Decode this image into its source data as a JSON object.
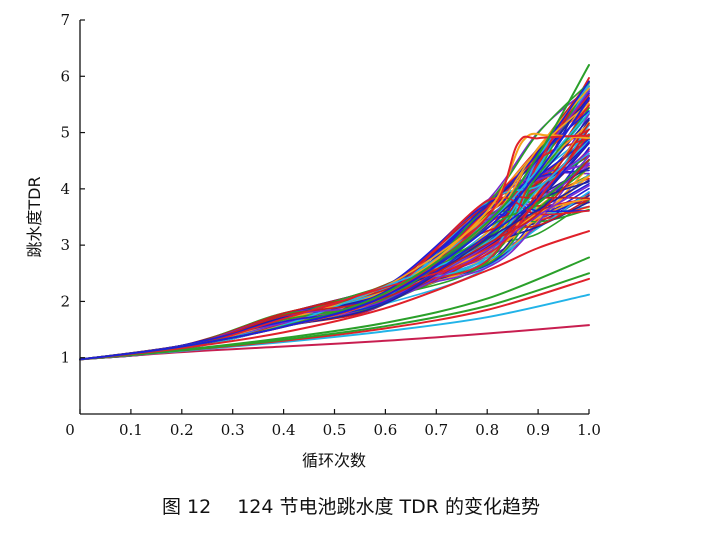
{
  "caption": {
    "figure_label": "图 12",
    "text": "124 节电池跳水度 TDR 的变化趋势"
  },
  "chart_data": {
    "type": "line",
    "title": "",
    "xlabel": "循环次数",
    "ylabel": "跳水度TDR",
    "xlim": [
      0,
      1.0
    ],
    "ylim": [
      0,
      7
    ],
    "xticks": [
      "0",
      "0.1",
      "0.2",
      "0.3",
      "0.4",
      "0.5",
      "0.6",
      "0.7",
      "0.8",
      "0.9",
      "1.0"
    ],
    "yticks": [
      "1",
      "2",
      "3",
      "4",
      "5",
      "6",
      "7"
    ],
    "grid": false,
    "legend": "none",
    "series_count": 124,
    "colors": [
      "#1f1fd6",
      "#e0202a",
      "#f7a21b",
      "#2aa02a",
      "#22b3e8",
      "#7a2ad0",
      "#2020a0",
      "#c81e1e"
    ],
    "series": [
      {
        "name": "",
        "color": "#c81e50",
        "x": [
          0,
          0.2,
          0.4,
          0.6,
          0.8,
          1.0
        ],
        "y": [
          0.97,
          1.1,
          1.2,
          1.3,
          1.43,
          1.58
        ]
      },
      {
        "name": "",
        "color": "#22b3e8",
        "x": [
          0,
          0.2,
          0.4,
          0.6,
          0.8,
          1.0
        ],
        "y": [
          0.97,
          1.12,
          1.28,
          1.47,
          1.72,
          2.12
        ]
      },
      {
        "name": "",
        "color": "#e0202a",
        "x": [
          0,
          0.2,
          0.4,
          0.6,
          0.8,
          1.0
        ],
        "y": [
          0.97,
          1.13,
          1.3,
          1.52,
          1.85,
          2.4
        ]
      },
      {
        "name": "",
        "color": "#2aa02a",
        "x": [
          0,
          0.2,
          0.4,
          0.6,
          0.8,
          1.0
        ],
        "y": [
          0.97,
          1.13,
          1.32,
          1.56,
          1.92,
          2.5
        ]
      },
      {
        "name": "",
        "color": "#2aa02a",
        "x": [
          0,
          0.2,
          0.4,
          0.6,
          0.8,
          1.0
        ],
        "y": [
          0.97,
          1.14,
          1.35,
          1.62,
          2.05,
          2.78
        ]
      },
      {
        "name": "",
        "color": "#e0202a",
        "x": [
          0,
          0.2,
          0.4,
          0.6,
          0.8,
          0.9,
          1.0
        ],
        "y": [
          0.97,
          1.17,
          1.45,
          1.88,
          2.55,
          2.95,
          3.25
        ]
      },
      {
        "name": "",
        "color": "#f7a21b",
        "x": [
          0,
          0.2,
          0.4,
          0.6,
          0.8,
          0.87,
          0.92,
          1.0
        ],
        "y": [
          0.97,
          1.2,
          1.55,
          2.1,
          3.6,
          4.85,
          4.95,
          4.9
        ]
      },
      {
        "name": "",
        "color": "#e0202a",
        "x": [
          0,
          0.2,
          0.4,
          0.6,
          0.8,
          0.86,
          0.9,
          1.0
        ],
        "y": [
          0.97,
          1.2,
          1.55,
          2.1,
          3.5,
          4.8,
          4.9,
          4.95
        ]
      },
      {
        "name": "",
        "color": "#2aa02a",
        "x": [
          0,
          0.2,
          0.4,
          0.6,
          0.8,
          0.9,
          1.0
        ],
        "y": [
          0.97,
          1.2,
          1.56,
          2.15,
          3.4,
          4.6,
          6.2
        ]
      },
      {
        "name": "",
        "color": "#1f1fd6",
        "x": [
          0,
          0.2,
          0.4,
          0.6,
          0.8,
          0.9,
          1.0
        ],
        "y": [
          0.97,
          1.2,
          1.55,
          2.1,
          3.3,
          4.3,
          5.6
        ]
      }
    ]
  }
}
